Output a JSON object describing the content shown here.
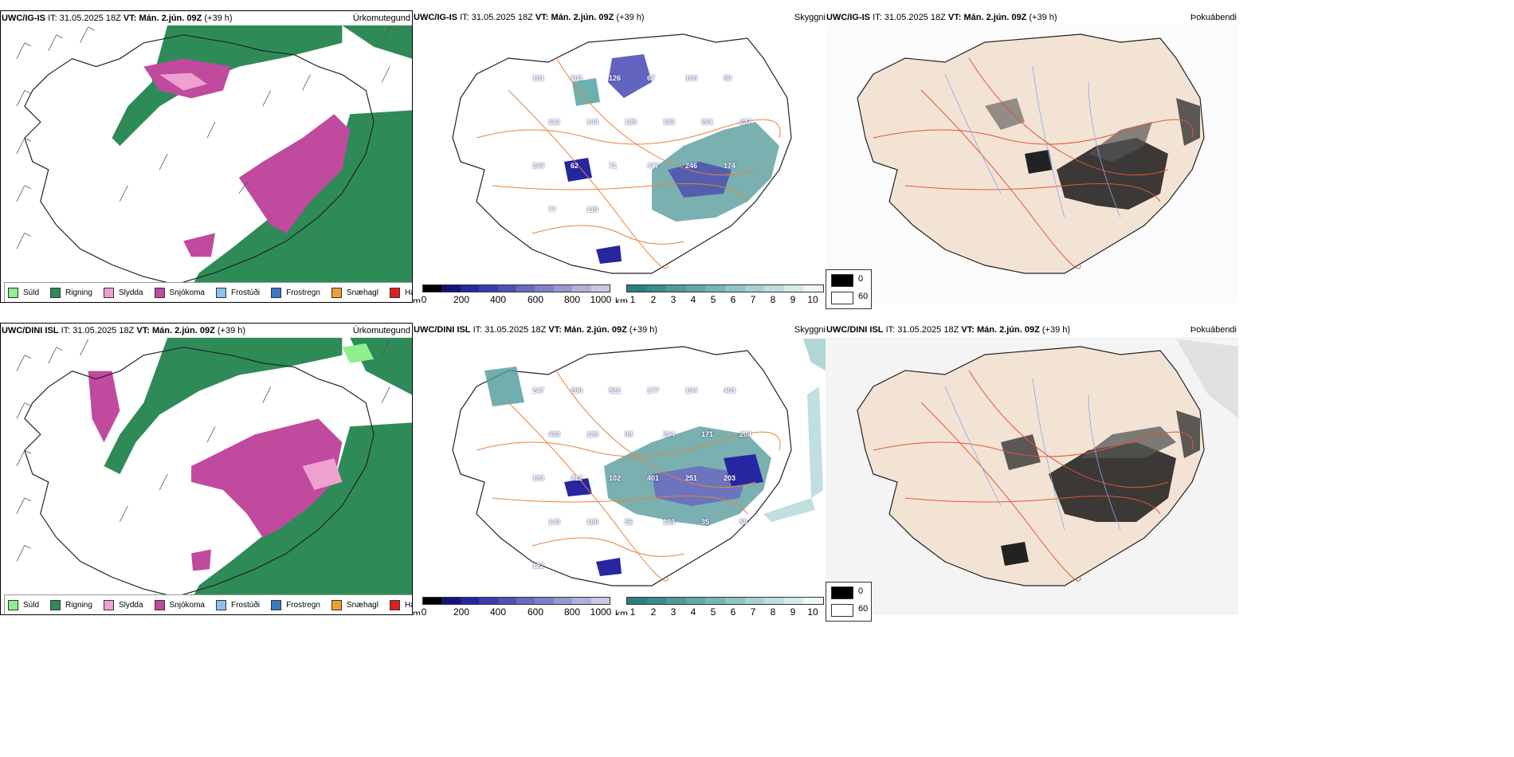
{
  "panels": [
    {
      "model": "UWC/IG-IS",
      "it_label": "IT:",
      "it_value": "31.05.2025 18Z",
      "vt_label": "VT:",
      "vt_value": "Mán. 2.jún. 09Z",
      "lead": "(+39 h)",
      "precip_title": "Úrkomutegund",
      "cloud_title": "Skyggni",
      "fog_title": "Þokuábendi",
      "snow_labels": [
        "101",
        "103",
        "126",
        "67",
        "100",
        "90",
        "113",
        "144",
        "125",
        "183",
        "261",
        "237",
        "249",
        "62",
        "71",
        "477",
        "246",
        "174",
        "77",
        "115"
      ]
    },
    {
      "model": "UWC/DINI ISL",
      "it_label": "IT:",
      "it_value": "31.05.2025 18Z",
      "vt_label": "VT:",
      "vt_value": "Mán. 2.jún. 09Z",
      "lead": "(+39 h)",
      "precip_title": "Úrkomutegund",
      "cloud_title": "Skyggni",
      "fog_title": "Þokuábendi",
      "snow_labels": [
        "247",
        "280",
        "822",
        "177",
        "194",
        "463",
        "483",
        "123",
        "98",
        "264",
        "171",
        "203",
        "183",
        "212",
        "102",
        "401",
        "251",
        "203",
        "140",
        "186",
        "56",
        "103",
        "35",
        "58",
        "122"
      ]
    }
  ],
  "precip_legend": [
    {
      "label": "Súld",
      "color": "#8ef08e"
    },
    {
      "label": "Rigning",
      "color": "#2e8b57"
    },
    {
      "label": "Slydda",
      "color": "#f0a0d0"
    },
    {
      "label": "Snjókoma",
      "color": "#c04a9e"
    },
    {
      "label": "Frostúði",
      "color": "#8cc0f0"
    },
    {
      "label": "Frostregn",
      "color": "#3a78c8"
    },
    {
      "label": "Snæhagl",
      "color": "#f0a030"
    },
    {
      "label": "Haglél",
      "color": "#e02020"
    }
  ],
  "height_bar": {
    "unit": "m",
    "ticks": [
      "0",
      "200",
      "400",
      "600",
      "800",
      "1000"
    ],
    "colors": [
      "#000000",
      "#12127a",
      "#2626a0",
      "#3c3cb0",
      "#5050b8",
      "#6a6ac0",
      "#8080c8",
      "#9898d0",
      "#b0b0dc",
      "#c8c8e8"
    ]
  },
  "vis_bar": {
    "unit": "km",
    "ticks": [
      "1",
      "2",
      "3",
      "4",
      "5",
      "6",
      "7",
      "8",
      "9",
      "10"
    ],
    "colors": [
      "#2a7f7f",
      "#3c8c8c",
      "#4f9a9a",
      "#62a8a8",
      "#78b6b6",
      "#8ec4c4",
      "#a6d2d2",
      "#bedede",
      "#d6eaea",
      "#eef6f6"
    ]
  },
  "cloud_legend": {
    "items": [
      {
        "label": "0",
        "color": "#000000"
      },
      {
        "label": "60",
        "color": "#ffffff"
      }
    ]
  },
  "colors": {
    "land_fog": "#f3e3d4",
    "coast": "#222222",
    "roads": "#e8823a",
    "rivers": "#8aa6f0",
    "rain_green": "#2e8b57",
    "snow_magenta": "#c04a9e"
  }
}
